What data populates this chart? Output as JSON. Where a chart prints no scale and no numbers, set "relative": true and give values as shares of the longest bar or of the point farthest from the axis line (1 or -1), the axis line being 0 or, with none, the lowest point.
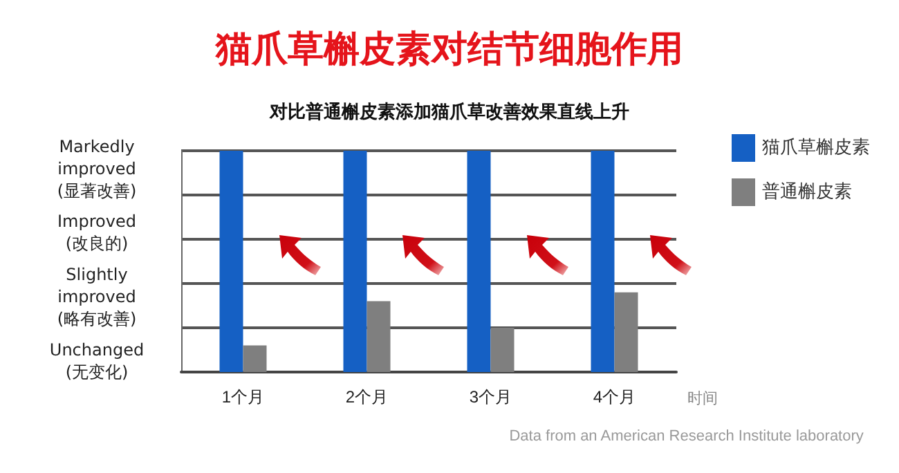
{
  "chart_data": {
    "type": "bar",
    "title": "猫爪草槲皮素对结节细胞作用",
    "subtitle": "对比普通槲皮素添加猫爪草改善效果直线上升",
    "xlabel": "时间",
    "categories": [
      "1个月",
      "2个月",
      "3个月",
      "4个月"
    ],
    "series": [
      {
        "name": "猫爪草槲皮素",
        "color": "#1560c4",
        "values": [
          1,
          1,
          1,
          1
        ]
      },
      {
        "name": "普通槲皮素",
        "color": "#7f7f7f",
        "values": [
          0.12,
          0.32,
          0.2,
          0.36
        ]
      }
    ],
    "relative": true,
    "grid": "y",
    "legend": "top right",
    "annotations": [
      "Markedly\nimproved\n(显著改善)",
      "Improved\n(改良的)",
      "Slightly\nimproved\n(略有改善)",
      "Unchanged\n(无变化)",
      "Data from an American Research Institute laboratory"
    ]
  }
}
